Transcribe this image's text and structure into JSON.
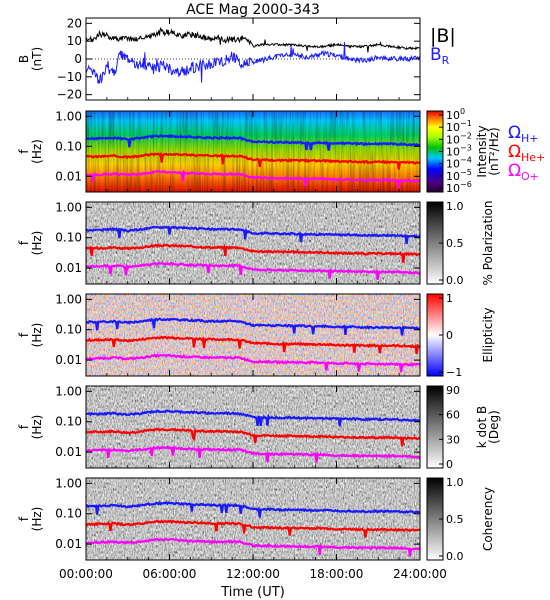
{
  "chart_data": {
    "type": "line",
    "title": "ACE Mag 2000-343",
    "xlabel": "Time (UT)",
    "x_ticks": [
      "00:00:00",
      "06:00:00",
      "12:00:00",
      "18:00:00",
      "24:00:00"
    ],
    "x_tick_hours": [
      0,
      6,
      12,
      18,
      24
    ],
    "xlim_hours": [
      0,
      24
    ],
    "panels": [
      {
        "id": "field",
        "type": "line",
        "ylabel": [
          "B",
          "(nT)"
        ],
        "ylim": [
          -23,
          23
        ],
        "y_ticks": [
          20,
          10,
          0,
          -10,
          -20
        ],
        "y_tick_labels": [
          "20",
          "10",
          "0",
          "−10",
          "−20"
        ],
        "legend": [
          {
            "name": "|B|",
            "color": "#000000"
          },
          {
            "name": "B",
            "sub": "R",
            "color": "#1a1aff"
          }
        ],
        "series": [
          {
            "name": "|B|",
            "color": "#000000",
            "x_hours": [
              0,
              0.5,
              1,
              1.5,
              2,
              2.5,
              3,
              3.5,
              4,
              4.5,
              5,
              5.5,
              6,
              6.5,
              7,
              7.5,
              8,
              8.5,
              9,
              9.5,
              10,
              10.5,
              11,
              11.5,
              12,
              12.5,
              13,
              14,
              15,
              16,
              17,
              18,
              19,
              20,
              21,
              22,
              23,
              24
            ],
            "values": [
              10,
              11,
              14,
              13,
              12,
              11,
              12,
              11,
              12,
              13,
              14,
              15,
              15,
              14,
              13,
              14,
              13,
              12,
              11,
              12,
              11,
              11,
              11,
              12,
              7,
              8,
              8,
              8,
              8,
              7,
              7,
              8,
              7,
              7,
              8,
              7,
              6,
              6
            ]
          },
          {
            "name": "B_R",
            "color": "#1a1aff",
            "x_hours": [
              0,
              0.5,
              1,
              1.5,
              2,
              2.5,
              3,
              3.5,
              4,
              4.5,
              5,
              5.5,
              6,
              6.5,
              7,
              7.5,
              8,
              8.5,
              9,
              9.5,
              10,
              10.5,
              11,
              11.5,
              12,
              12.5,
              13,
              14,
              15,
              16,
              17,
              18,
              19,
              20,
              21,
              22,
              23,
              24
            ],
            "values": [
              -5,
              -8,
              -12,
              -5,
              -9,
              3,
              -1,
              -3,
              -2,
              -4,
              -6,
              -3,
              -5,
              -8,
              -7,
              -5,
              -4,
              -3,
              -3,
              -2,
              -1,
              1,
              -2,
              -3,
              -2,
              -1,
              0,
              2,
              2,
              1,
              3,
              2,
              0,
              -1,
              1,
              0,
              0,
              1
            ]
          }
        ]
      },
      {
        "id": "intensity",
        "type": "heatmap",
        "ylabel": [
          "f",
          "(Hz)"
        ],
        "ylim": [
          0.003,
          1.5
        ],
        "y_scale": "log",
        "y_ticks": [
          1.0,
          0.1,
          0.01
        ],
        "y_tick_labels": [
          "1.00",
          "0.10",
          "0.01"
        ],
        "colorbar": {
          "label": [
            "Intensity",
            "(nT²/Hz)"
          ],
          "scale": "rainbow",
          "ticks": [
            {
              "base": "10",
              "exp": "0"
            },
            {
              "base": "10",
              "exp": "−1"
            },
            {
              "base": "10",
              "exp": "−2"
            },
            {
              "base": "10",
              "exp": "−3"
            },
            {
              "base": "10",
              "exp": "−4"
            },
            {
              "base": "10",
              "exp": "−5"
            },
            {
              "base": "10",
              "exp": "−6"
            }
          ]
        },
        "side_legend": [
          {
            "name": "Ω",
            "sub": "H+",
            "color": "#1a1aff"
          },
          {
            "name": "Ω",
            "sub": "He+",
            "color": "#ff0000"
          },
          {
            "name": "Ω",
            "sub": "O+",
            "color": "#ff00ff"
          }
        ]
      },
      {
        "id": "polarization",
        "type": "heatmap",
        "ylabel": [
          "f",
          "(Hz)"
        ],
        "ylim": [
          0.003,
          1.5
        ],
        "y_scale": "log",
        "y_ticks": [
          1.0,
          0.1,
          0.01
        ],
        "y_tick_labels": [
          "1.00",
          "0.10",
          "0.01"
        ],
        "colorbar": {
          "label": [
            "% Polarization"
          ],
          "scale": "gray",
          "ticks": [
            "1.0",
            "0.5",
            "0.0"
          ]
        }
      },
      {
        "id": "ellipticity",
        "type": "heatmap",
        "ylabel": [
          "f",
          "(Hz)"
        ],
        "ylim": [
          0.003,
          1.5
        ],
        "y_scale": "log",
        "y_ticks": [
          1.0,
          0.1,
          0.01
        ],
        "y_tick_labels": [
          "1.00",
          "0.10",
          "0.01"
        ],
        "colorbar": {
          "label": [
            "Ellipticity"
          ],
          "scale": "bwr",
          "ticks": [
            "1",
            "0",
            "−1"
          ]
        }
      },
      {
        "id": "kdotb",
        "type": "heatmap",
        "ylabel": [
          "f",
          "(Hz)"
        ],
        "ylim": [
          0.003,
          1.5
        ],
        "y_scale": "log",
        "y_ticks": [
          1.0,
          0.1,
          0.01
        ],
        "y_tick_labels": [
          "1.00",
          "0.10",
          "0.01"
        ],
        "colorbar": {
          "label": [
            "k dot B",
            "(Deg)"
          ],
          "scale": "gray",
          "ticks": [
            "90",
            "60",
            "30",
            "0"
          ]
        }
      },
      {
        "id": "coherency",
        "type": "heatmap",
        "ylabel": [
          "f",
          "(Hz)"
        ],
        "ylim": [
          0.003,
          1.5
        ],
        "y_scale": "log",
        "y_ticks": [
          1.0,
          0.1,
          0.01
        ],
        "y_tick_labels": [
          "1.00",
          "0.10",
          "0.01"
        ],
        "colorbar": {
          "label": [
            "Coherency"
          ],
          "scale": "gray",
          "ticks": [
            "1.0",
            "0.5",
            "0.0"
          ]
        }
      }
    ],
    "gyrofrequency_lines": {
      "x_hours": [
        0,
        1,
        2,
        3,
        4,
        5,
        6,
        7,
        8,
        9,
        10,
        11,
        12,
        13,
        14,
        15,
        16,
        17,
        18,
        19,
        20,
        21,
        22,
        23,
        24
      ],
      "series": [
        {
          "name": "ΩH+",
          "color": "#1a1aff",
          "values": [
            0.18,
            0.18,
            0.19,
            0.17,
            0.19,
            0.22,
            0.22,
            0.21,
            0.2,
            0.19,
            0.19,
            0.19,
            0.14,
            0.14,
            0.135,
            0.135,
            0.13,
            0.13,
            0.125,
            0.125,
            0.12,
            0.12,
            0.12,
            0.115,
            0.11
          ]
        },
        {
          "name": "ΩHe+",
          "color": "#ff0000",
          "values": [
            0.045,
            0.046,
            0.048,
            0.043,
            0.048,
            0.055,
            0.055,
            0.053,
            0.05,
            0.048,
            0.048,
            0.047,
            0.036,
            0.035,
            0.034,
            0.034,
            0.033,
            0.033,
            0.031,
            0.031,
            0.03,
            0.03,
            0.03,
            0.029,
            0.028
          ]
        },
        {
          "name": "ΩO+",
          "color": "#ff00ff",
          "values": [
            0.011,
            0.0115,
            0.012,
            0.011,
            0.012,
            0.014,
            0.014,
            0.013,
            0.0125,
            0.012,
            0.012,
            0.012,
            0.009,
            0.0088,
            0.0085,
            0.0085,
            0.0083,
            0.0083,
            0.0078,
            0.0078,
            0.0075,
            0.0075,
            0.0075,
            0.0072,
            0.007
          ]
        }
      ]
    }
  }
}
